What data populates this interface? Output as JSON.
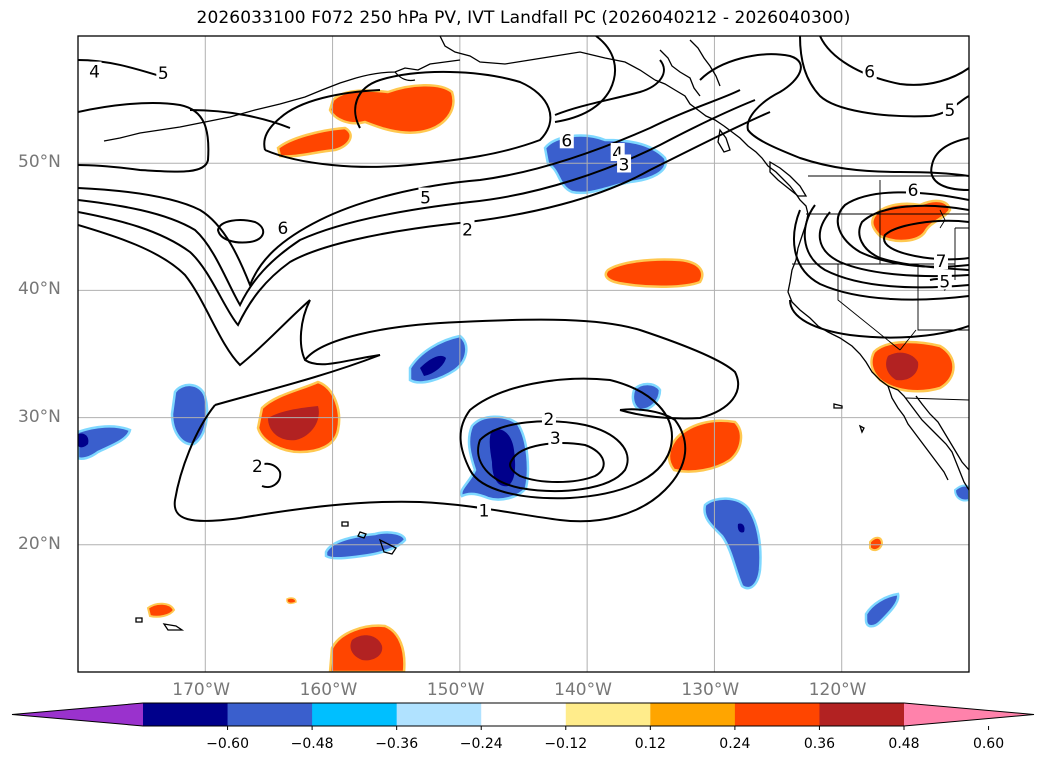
{
  "title": "2026033100 F072 250 hPa PV, IVT Landfall PC (2026040212 - 2026040300)",
  "map": {
    "lon_min": -180,
    "lon_max": -110,
    "lat_min": 10,
    "lat_max": 60,
    "gridline_color": "#b0b0b0",
    "lat_labels": [
      {
        "lat": 50,
        "text": "50°N"
      },
      {
        "lat": 40,
        "text": "40°N"
      },
      {
        "lat": 30,
        "text": "30°N"
      },
      {
        "lat": 20,
        "text": "20°N"
      }
    ],
    "lon_labels": [
      {
        "lon": -170,
        "text": "170°W"
      },
      {
        "lon": -160,
        "text": "160°W"
      },
      {
        "lon": -150,
        "text": "150°W"
      },
      {
        "lon": -140,
        "text": "140°W"
      },
      {
        "lon": -130,
        "text": "130°W"
      },
      {
        "lon": -120,
        "text": "120°W"
      }
    ],
    "contour_labels": [
      {
        "text": "4",
        "lon": -178.7,
        "lat": 57.2
      },
      {
        "text": "5",
        "lon": -173.3,
        "lat": 57.1
      },
      {
        "text": "6",
        "lon": -163.9,
        "lat": 44.9
      },
      {
        "text": "5",
        "lon": -152.7,
        "lat": 47.3
      },
      {
        "text": "2",
        "lon": -149.4,
        "lat": 44.8
      },
      {
        "text": "6",
        "lon": -141.6,
        "lat": 51.8
      },
      {
        "text": "4",
        "lon": -137.6,
        "lat": 50.8
      },
      {
        "text": "3",
        "lon": -137.1,
        "lat": 49.9
      },
      {
        "text": "6",
        "lon": -117.8,
        "lat": 57.2
      },
      {
        "text": "5",
        "lon": -111.5,
        "lat": 54.2
      },
      {
        "text": "6",
        "lon": -114.4,
        "lat": 47.9
      },
      {
        "text": "7",
        "lon": -112.2,
        "lat": 42.3
      },
      {
        "text": "5",
        "lon": -111.9,
        "lat": 40.7
      },
      {
        "text": "2",
        "lon": -143.0,
        "lat": 29.9
      },
      {
        "text": "3",
        "lon": -142.5,
        "lat": 28.4
      },
      {
        "text": "2",
        "lon": -165.9,
        "lat": 26.2
      },
      {
        "text": "1",
        "lon": -148.1,
        "lat": 22.7
      }
    ]
  },
  "colorbar": {
    "colors": [
      "#9a32cd",
      "#00008b",
      "#3a5fcd",
      "#00bfff",
      "#b0e2ff",
      "#ffffff",
      "#ffec8b",
      "#ffa500",
      "#ff4500",
      "#b22222",
      "#ff82ab"
    ],
    "ticks": [
      "−0.60",
      "−0.48",
      "−0.36",
      "−0.24",
      "−0.12",
      "0.12",
      "0.24",
      "0.36",
      "0.48",
      "0.60"
    ]
  }
}
